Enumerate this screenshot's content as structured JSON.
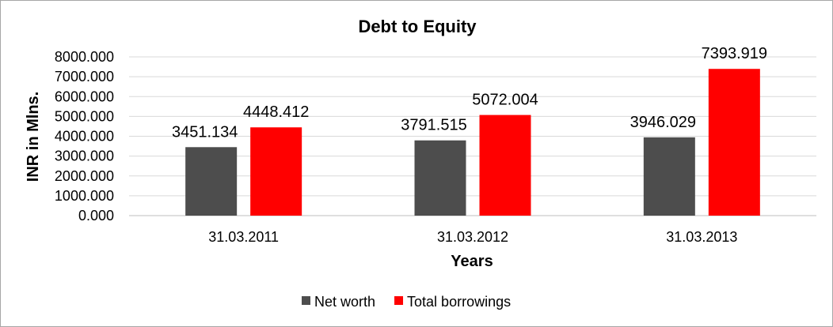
{
  "chart_data": {
    "type": "bar",
    "title": "Debt to Equity",
    "xlabel": "Years",
    "ylabel": "INR in Mlns.",
    "categories": [
      "31.03.2011",
      "31.03.2012",
      "31.03.2013"
    ],
    "series": [
      {
        "name": "Net worth",
        "color": "#4d4d4d",
        "values": [
          3451.134,
          3791.515,
          3946.029
        ],
        "labels": [
          "3451.134",
          "3791.515",
          "3946.029"
        ]
      },
      {
        "name": "Total borrowings",
        "color": "#ff0000",
        "values": [
          4448.412,
          5072.004,
          7393.919
        ],
        "labels": [
          "4448.412",
          "5072.004",
          "7393.919"
        ]
      }
    ],
    "ylim": [
      0,
      8000
    ],
    "yticks": [
      0,
      1000,
      2000,
      3000,
      4000,
      5000,
      6000,
      7000,
      8000
    ],
    "ytick_labels": [
      "0.000",
      "1000.000",
      "2000.000",
      "3000.000",
      "4000.000",
      "5000.000",
      "6000.000",
      "7000.000",
      "8000.000"
    ],
    "grid": true,
    "legend_position": "bottom"
  }
}
